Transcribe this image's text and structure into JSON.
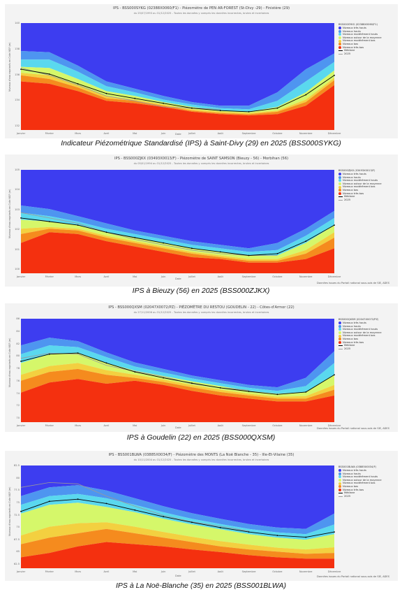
{
  "colors": {
    "tres_hauts": "#3d3df0",
    "hauts": "#4e95f0",
    "moderement_hauts": "#5ad8ee",
    "autour": "#d5f76a",
    "moderement_bas": "#f3d040",
    "bas": "#f58b1e",
    "tres_bas": "#f4300f",
    "mediane": "#000000",
    "annee": "#9a9a9a"
  },
  "legend_labels": [
    "Niveaux très hauts",
    "Niveaux hauts",
    "Niveaux modérément hauts",
    "Niveaux autour de la moyenne",
    "Niveaux modérément bas",
    "Niveaux bas",
    "Niveaux très bas",
    "Médiane",
    "2025"
  ],
  "months": [
    "Janvier",
    "Février",
    "Mars",
    "Avril",
    "Mai",
    "Juin",
    "Juillet",
    "Août",
    "Septembre",
    "Octobre",
    "Novembre",
    "Décembre"
  ],
  "charts": [
    {
      "title": "IPS - BSS000SYKG (02388X0060/F1) - Piézomètre de PEN AR-FOREST (St-Divy -29) - Finistère (29)",
      "subtitle": "du 25/07/1993 au 31/12/2025 - Toutes les données y compris les données incorrectes, brutes et incertaines",
      "legend_title": "BSS000SYKG (02388X0060/F1)",
      "caption": "Indicateur Piézométrique Standardisé (IPS) à Saint-Divy (29) en 2025 (BSS000SYKG)",
      "xlabel": "Date",
      "credit": "",
      "ylabel": "Niveaux d'eau exprimés en Cote NGF (m)",
      "yticks": [
        "140",
        "138",
        "136",
        "134",
        "132"
      ]
    },
    {
      "title": "IPS - BSS000ZJKX (03493X0013/F) - Piézomètre de SAINT SAMSON (Bieuzy - 56) - Morbihan (56)",
      "subtitle": "du 05/01/1994 au 31/12/2025 - Toutes les données y compris les données incorrectes, brutes et incertaines",
      "legend_title": "BSS000ZJKX (03493X0013/F)",
      "caption": "IPS à Bieuzy (56) en 2025 (BSS000ZJKX)",
      "xlabel": "Date",
      "credit": "Données issues du Portail national sous-sols de SIE, ADES",
      "ylabel": "Niveaux d'eau exprimés en Cote NGF (m)",
      "yticks": [
        "105",
        "104",
        "103",
        "102",
        "101",
        "100"
      ]
    },
    {
      "title": "IPS - BSS000QXSM (02047X0072/PZ) - PIÉZOMÈTRE DU RESTOU (GOUDELIN - 22) - Côtes-d'Armor (22)",
      "subtitle": "du 27/11/2006 au 31/12/2025 - Toutes les données y compris les données incorrectes, brutes et incertaines",
      "legend_title": "BSS000QXSM (02047X0072/PZ)",
      "caption": "IPS à Goudelin (22) en 2025 (BSS000QXSM)",
      "xlabel": "Date",
      "credit": "Données issues du Portail national sous-sols de SIE, ADES",
      "ylabel": "Niveaux d'eau exprimés en Cote NGF (m)",
      "yticks": [
        "86",
        "84",
        "82",
        "80",
        "78",
        "76",
        "74",
        "72",
        "70"
      ]
    },
    {
      "title": "IPS - BSS001BLWA (03885X0034/F) - Piézomètre des MONTS (La Noë Blanche - 35) - Ille-Et-Vilaine (35)",
      "subtitle": "du 10/11/2004 au 31/12/2025 - Toutes les données y compris les données incorrectes, brutes et incertaines",
      "legend_title": "BSS001BLWA (03885X0034/F)",
      "caption": "IPS à La Noë-Blanche (35) en 2025 (BSS001BLWA)",
      "xlabel": "Date",
      "credit": "Données issues du Portail national sous-sols de SIE, ADES",
      "ylabel": "Niveaux d'eau exprimés en Cote NGF (m)",
      "yticks": [
        "82.5",
        "80",
        "77.5",
        "75",
        "72.5",
        "70",
        "67.5",
        "65",
        "62.5"
      ]
    }
  ],
  "chart_data": [
    {
      "type": "area",
      "title": "IPS - BSS000SYKG (02388X0060/F1) - Piézomètre de PEN AR-FOREST (St-Divy -29) - Finistère (29)",
      "xlabel": "Date",
      "ylabel": "Niveaux d'eau exprimés en Cote NGF (m)",
      "ylim": [
        131.8,
        140.6
      ],
      "categories": [
        "Janvier",
        "Février",
        "Mars",
        "Avril",
        "Mai",
        "Juin",
        "Juillet",
        "Août",
        "Septembre",
        "Octobre",
        "Novembre",
        "Décembre"
      ],
      "bands": {
        "tres_bas_top": [
          135.8,
          135.6,
          135.0,
          134.2,
          134.0,
          133.7,
          133.3,
          133.1,
          133.0,
          133.1,
          133.8,
          135.5
        ],
        "bas_top": [
          136.3,
          136.0,
          135.3,
          134.4,
          134.2,
          133.8,
          133.4,
          133.2,
          133.1,
          133.3,
          134.1,
          135.9
        ],
        "mod_bas_top": [
          136.5,
          136.3,
          135.5,
          134.6,
          134.3,
          133.9,
          133.5,
          133.3,
          133.2,
          133.4,
          134.3,
          136.1
        ],
        "autour_top": [
          137.0,
          136.9,
          136.0,
          135.0,
          134.6,
          134.1,
          133.7,
          133.4,
          133.3,
          133.7,
          134.9,
          136.7
        ],
        "mod_haut_top": [
          137.6,
          137.6,
          136.6,
          135.4,
          134.9,
          134.3,
          133.9,
          133.6,
          133.5,
          134.2,
          135.8,
          137.4
        ],
        "haut_top": [
          138.3,
          138.2,
          137.1,
          135.8,
          135.2,
          134.6,
          134.1,
          133.8,
          133.8,
          134.9,
          136.8,
          138.1
        ]
      },
      "series": [
        {
          "name": "Médiane",
          "values": [
            136.8,
            136.4,
            135.6,
            134.8,
            134.4,
            134.0,
            133.6,
            133.4,
            133.3,
            133.6,
            134.7,
            136.3
          ]
        },
        {
          "name": "2025",
          "values": [
            136.9,
            136.3,
            135.5,
            134.6,
            134.2,
            133.7,
            133.6,
            133.5,
            null,
            null,
            null,
            null
          ]
        }
      ]
    },
    {
      "type": "area",
      "title": "IPS - BSS000ZJKX (03493X0013/F) - Piézomètre de SAINT SAMSON (Bieuzy - 56) - Morbihan (56)",
      "xlabel": "Date",
      "ylabel": "Niveaux d'eau exprimés en Cote NGF (m)",
      "ylim": [
        99.5,
        105.3
      ],
      "categories": [
        "Janvier",
        "Février",
        "Mars",
        "Avril",
        "Mai",
        "Juin",
        "Juillet",
        "Août",
        "Septembre",
        "Octobre",
        "Novembre",
        "Décembre"
      ],
      "bands": {
        "tres_bas_top": [
          101.2,
          101.8,
          101.7,
          101.3,
          101.0,
          100.7,
          100.4,
          100.3,
          100.1,
          100.1,
          100.3,
          100.9
        ],
        "bas_top": [
          101.7,
          102.0,
          101.9,
          101.5,
          101.2,
          100.9,
          100.6,
          100.4,
          100.2,
          100.2,
          100.6,
          101.5
        ],
        "mod_bas_top": [
          102.0,
          102.1,
          102.0,
          101.6,
          101.3,
          101.0,
          100.7,
          100.5,
          100.3,
          100.3,
          100.8,
          101.8
        ],
        "autour_top": [
          102.5,
          102.4,
          102.2,
          101.8,
          101.5,
          101.2,
          100.9,
          100.7,
          100.5,
          100.5,
          101.2,
          102.2
        ],
        "mod_haut_top": [
          102.9,
          102.7,
          102.4,
          102.0,
          101.7,
          101.4,
          101.1,
          100.9,
          100.7,
          100.8,
          101.6,
          102.6
        ],
        "haut_top": [
          103.3,
          103.1,
          102.7,
          102.3,
          101.9,
          101.6,
          101.3,
          101.1,
          100.9,
          101.2,
          102.0,
          103.0
        ]
      },
      "series": [
        {
          "name": "Médiane",
          "values": [
            102.6,
            102.4,
            102.2,
            101.8,
            101.5,
            101.2,
            100.9,
            100.7,
            100.5,
            100.6,
            101.3,
            102.2
          ]
        },
        {
          "name": "2025",
          "values": [
            102.9,
            102.6,
            102.3,
            101.8,
            101.4,
            101.1,
            100.8,
            100.6,
            100.5,
            100.5,
            null,
            null
          ]
        }
      ]
    },
    {
      "type": "area",
      "title": "IPS - BSS000QXSM (02047X0072/PZ) - PIÉZOMÈTRE DU RESTOU (GOUDELIN - 22) - Côtes-d'Armor (22)",
      "xlabel": "Date",
      "ylabel": "Niveaux d'eau exprimés en Cote NGF (m)",
      "ylim": [
        69.5,
        87
      ],
      "categories": [
        "Janvier",
        "Février",
        "Mars",
        "Avril",
        "Mai",
        "Juin",
        "Juillet",
        "Août",
        "Septembre",
        "Octobre",
        "Novembre",
        "Décembre"
      ],
      "bands": {
        "tres_bas_top": [
          74.5,
          76.2,
          76.8,
          76.0,
          76.5,
          75.8,
          74.8,
          74.0,
          73.5,
          73.0,
          73.0,
          74.0
        ],
        "bas_top": [
          76.5,
          78.0,
          78.5,
          77.5,
          77.0,
          76.3,
          75.4,
          74.6,
          74.0,
          73.5,
          73.5,
          75.0
        ],
        "mod_bas_top": [
          77.5,
          79.0,
          79.5,
          78.3,
          77.5,
          76.7,
          75.8,
          75.0,
          74.3,
          73.8,
          73.9,
          75.8
        ],
        "autour_top": [
          79.5,
          81.0,
          81.2,
          79.5,
          78.2,
          77.3,
          76.4,
          75.6,
          74.8,
          74.3,
          74.6,
          77.5
        ],
        "mod_haut_top": [
          81.0,
          82.5,
          82.2,
          80.5,
          78.9,
          77.9,
          76.9,
          76.1,
          75.3,
          74.8,
          75.6,
          79.5
        ],
        "haut_top": [
          82.5,
          83.8,
          83.2,
          81.3,
          79.6,
          78.5,
          77.4,
          76.6,
          75.8,
          75.4,
          77.0,
          81.5
        ]
      },
      "series": [
        {
          "name": "Médiane",
          "values": [
            79.8,
            81.0,
            81.2,
            79.5,
            78.0,
            77.0,
            76.1,
            75.3,
            74.7,
            74.2,
            74.6,
            77.5
          ]
        },
        {
          "name": "2025",
          "values": [
            80.3,
            81.2,
            81.0,
            79.1,
            78.1,
            77.2,
            76.0,
            75.3,
            74.9,
            null,
            null,
            null
          ]
        }
      ]
    },
    {
      "type": "area",
      "title": "IPS - BSS001BLWA (03885X0034/F) - Piézomètre des MONTS (La Noë Blanche - 35) - Ille-Et-Vilaine (35)",
      "xlabel": "Date",
      "ylabel": "Niveaux d'eau exprimés en Cote NGF (m)",
      "ylim": [
        61.0,
        84.5
      ],
      "categories": [
        "Janvier",
        "Février",
        "Mars",
        "Avril",
        "Mai",
        "Juin",
        "Juillet",
        "Août",
        "Septembre",
        "Octobre",
        "Novembre",
        "Décembre"
      ],
      "bands": {
        "tres_bas_top": [
          63.5,
          64.5,
          66.0,
          67.0,
          66.5,
          66.0,
          65.3,
          64.7,
          64.0,
          63.5,
          63.2,
          63.2
        ],
        "bas_top": [
          66.5,
          68.0,
          69.0,
          70.0,
          69.0,
          68.0,
          67.0,
          66.0,
          65.3,
          64.8,
          64.3,
          64.5
        ],
        "mod_bas_top": [
          68.5,
          70.5,
          71.3,
          71.5,
          70.5,
          69.3,
          68.2,
          67.2,
          66.4,
          65.7,
          65.3,
          65.8
        ],
        "autour_top": [
          73.5,
          75.5,
          76.0,
          75.0,
          73.8,
          72.3,
          71.0,
          69.9,
          68.8,
          68.0,
          67.5,
          68.8
        ],
        "mod_haut_top": [
          75.5,
          77.5,
          78.0,
          77.0,
          75.5,
          73.8,
          72.3,
          71.1,
          70.0,
          69.2,
          68.8,
          71.0
        ],
        "haut_top": [
          77.5,
          79.5,
          80.0,
          78.8,
          77.0,
          75.2,
          73.6,
          72.3,
          71.1,
          70.3,
          70.0,
          73.5
        ]
      },
      "series": [
        {
          "name": "Médiane",
          "values": [
            74.0,
            76.3,
            76.8,
            75.8,
            74.3,
            72.8,
            71.5,
            70.3,
            69.3,
            68.5,
            68.1,
            69.3
          ]
        },
        {
          "name": "2025",
          "values": [
            79.5,
            80.6,
            80.3,
            77.5,
            75.2,
            73.1,
            71.6,
            70.6,
            69.5,
            null,
            null,
            null
          ]
        }
      ]
    }
  ]
}
